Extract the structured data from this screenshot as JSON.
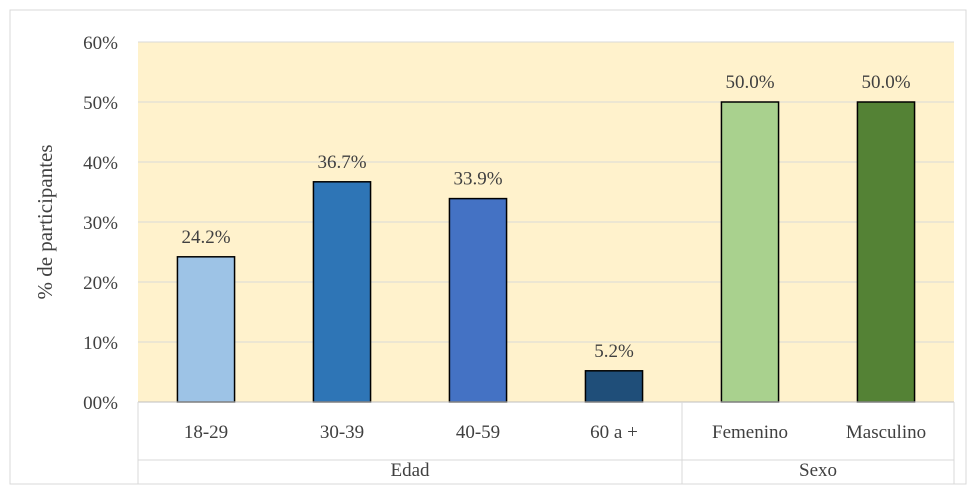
{
  "chart_data": {
    "type": "bar",
    "title": "",
    "ylabel": "% de participantes",
    "xlabel": "",
    "ylim": [
      0,
      60
    ],
    "yticks": [
      0,
      10,
      20,
      30,
      40,
      50,
      60
    ],
    "ytick_labels": [
      "00%",
      "10%",
      "20%",
      "30%",
      "40%",
      "50%",
      "60%"
    ],
    "grid": true,
    "plot_background": "#fff2cc",
    "groups": [
      {
        "name": "Edad",
        "categories": [
          "18-29",
          "30-39",
          "40-59",
          "60 a +"
        ],
        "values": [
          24.2,
          36.7,
          33.9,
          5.2
        ],
        "value_labels": [
          "24.2%",
          "36.7%",
          "33.9%",
          "5.2%"
        ],
        "colors": [
          "#9dc3e6",
          "#2e75b6",
          "#4472c4",
          "#1f4e79"
        ]
      },
      {
        "name": "Sexo",
        "categories": [
          "Femenino",
          "Masculino"
        ],
        "values": [
          50.0,
          50.0
        ],
        "value_labels": [
          "50.0%",
          "50.0%"
        ],
        "colors": [
          "#a9d18e",
          "#548235"
        ]
      }
    ]
  }
}
